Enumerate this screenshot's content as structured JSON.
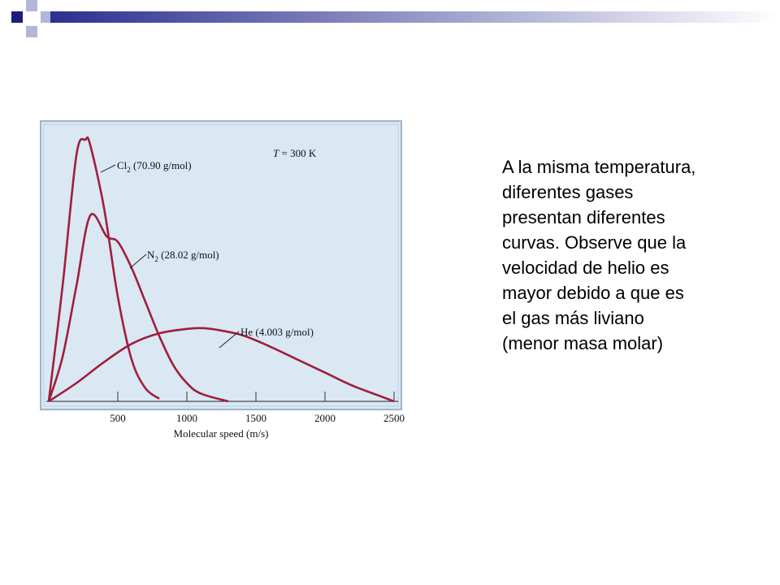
{
  "slide": {
    "caption_lines": [
      "A la misma temperatura,",
      "diferentes gases",
      "presentan diferentes",
      "curvas. Observe que la",
      "velocidad de helio es",
      "mayor debido a que es",
      "el gas más liviano",
      "(menor masa molar)"
    ],
    "colors": {
      "banner_start": "#2b2f8f",
      "banner_end": "#ffffff",
      "accent_square": "#1c1c80",
      "accent_square_light": "#b3b5d9"
    }
  },
  "chart_data": {
    "type": "line",
    "xlabel": "Molecular speed (m/s)",
    "ylabel": "",
    "xlim": [
      0,
      2500
    ],
    "x_ticks": [
      "500",
      "1000",
      "1500",
      "2000",
      "2500"
    ],
    "annotation": {
      "T_symbol": "T",
      "T_value": " = 300 K"
    },
    "grid": false,
    "background_color": "#d9e8f3",
    "line_color": "#a01e3c",
    "series": [
      {
        "name": "Cl",
        "subscript": "2",
        "molar_mass_label": " (70.90 g/mol)",
        "molar_mass": 70.9,
        "x": [
          0,
          100,
          200,
          265,
          300,
          400,
          500,
          600,
          700,
          800
        ],
        "y": [
          0.0,
          0.44,
          0.94,
          1.0,
          0.98,
          0.74,
          0.4,
          0.16,
          0.05,
          0.01
        ]
      },
      {
        "name": "N",
        "subscript": "2",
        "molar_mass_label": " (28.02 g/mol)",
        "molar_mass": 28.02,
        "x": [
          0,
          100,
          200,
          300,
          420,
          500,
          600,
          700,
          800,
          900,
          1000,
          1100,
          1300
        ],
        "y": [
          0.0,
          0.17,
          0.44,
          0.71,
          0.63,
          0.61,
          0.51,
          0.38,
          0.25,
          0.14,
          0.07,
          0.03,
          0.0
        ]
      },
      {
        "name": "He",
        "subscript": "",
        "molar_mass_label": " (4.003 g/mol)",
        "molar_mass": 4.003,
        "x": [
          0,
          200,
          400,
          600,
          800,
          1000,
          1100,
          1200,
          1400,
          1600,
          1800,
          2000,
          2200,
          2400,
          2500
        ],
        "y": [
          0.0,
          0.07,
          0.15,
          0.22,
          0.26,
          0.277,
          0.28,
          0.275,
          0.253,
          0.21,
          0.16,
          0.11,
          0.06,
          0.02,
          0.0
        ]
      }
    ]
  }
}
